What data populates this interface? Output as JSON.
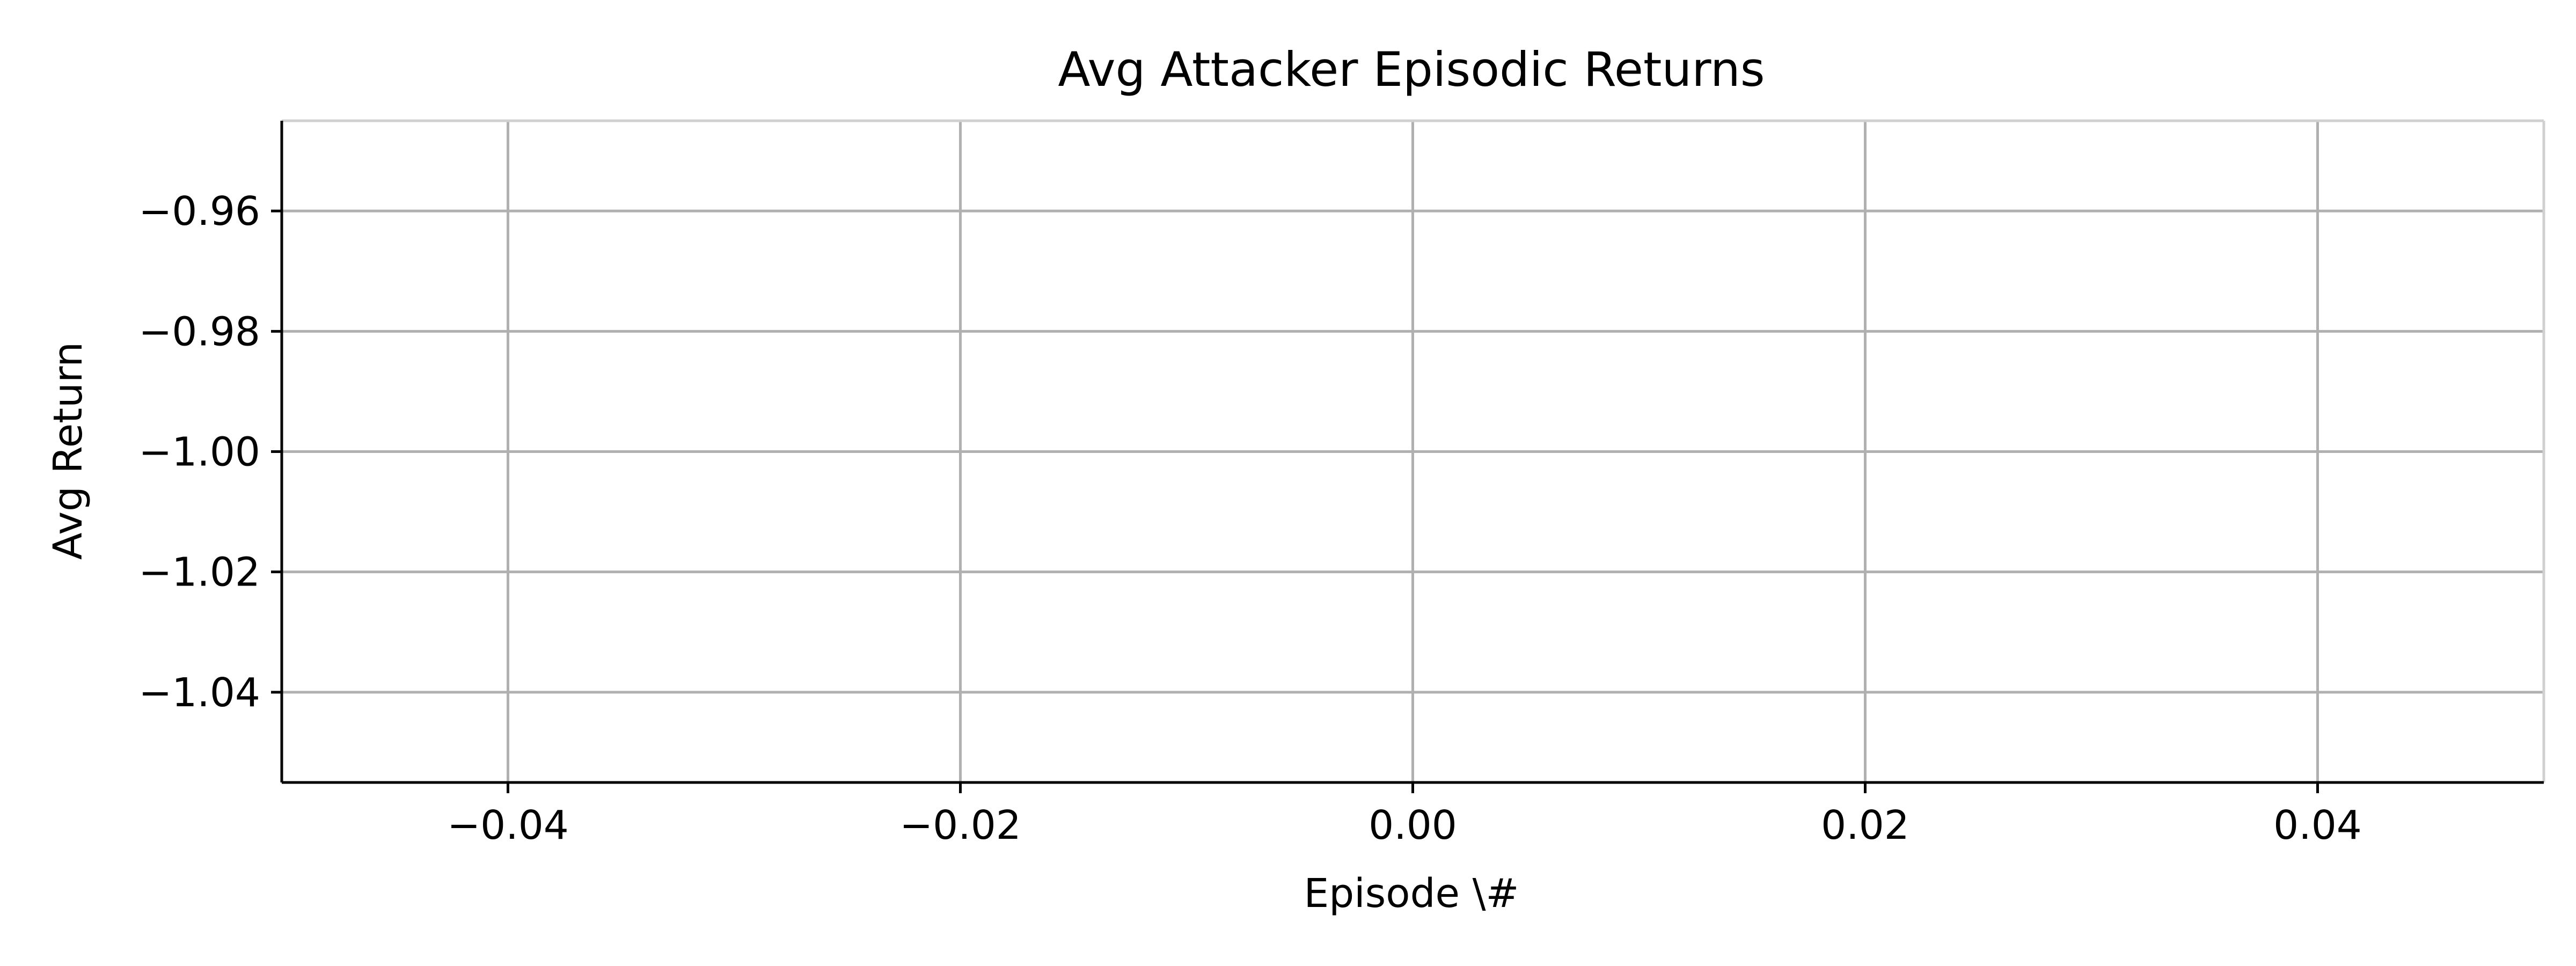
{
  "chart_data": {
    "type": "line",
    "title": "Avg Attacker Episodic Returns",
    "xlabel": "Episode \\#",
    "ylabel": "Avg Return",
    "xlim": [
      -0.05,
      0.05
    ],
    "ylim": [
      -1.055,
      -0.945
    ],
    "xticks": [
      -0.04,
      -0.02,
      0.0,
      0.02,
      0.04
    ],
    "xtick_labels": [
      "−0.04",
      "−0.02",
      "0.00",
      "0.02",
      "0.04"
    ],
    "yticks": [
      -0.96,
      -0.98,
      -1.0,
      -1.02,
      -1.04
    ],
    "ytick_labels": [
      "−0.96",
      "−0.98",
      "−1.00",
      "−1.02",
      "−1.04"
    ],
    "grid": true,
    "series": [],
    "colors": {
      "grid": "#b0b0b0",
      "axis": "#000000",
      "top_right_spine": "#d0d0d0"
    }
  }
}
